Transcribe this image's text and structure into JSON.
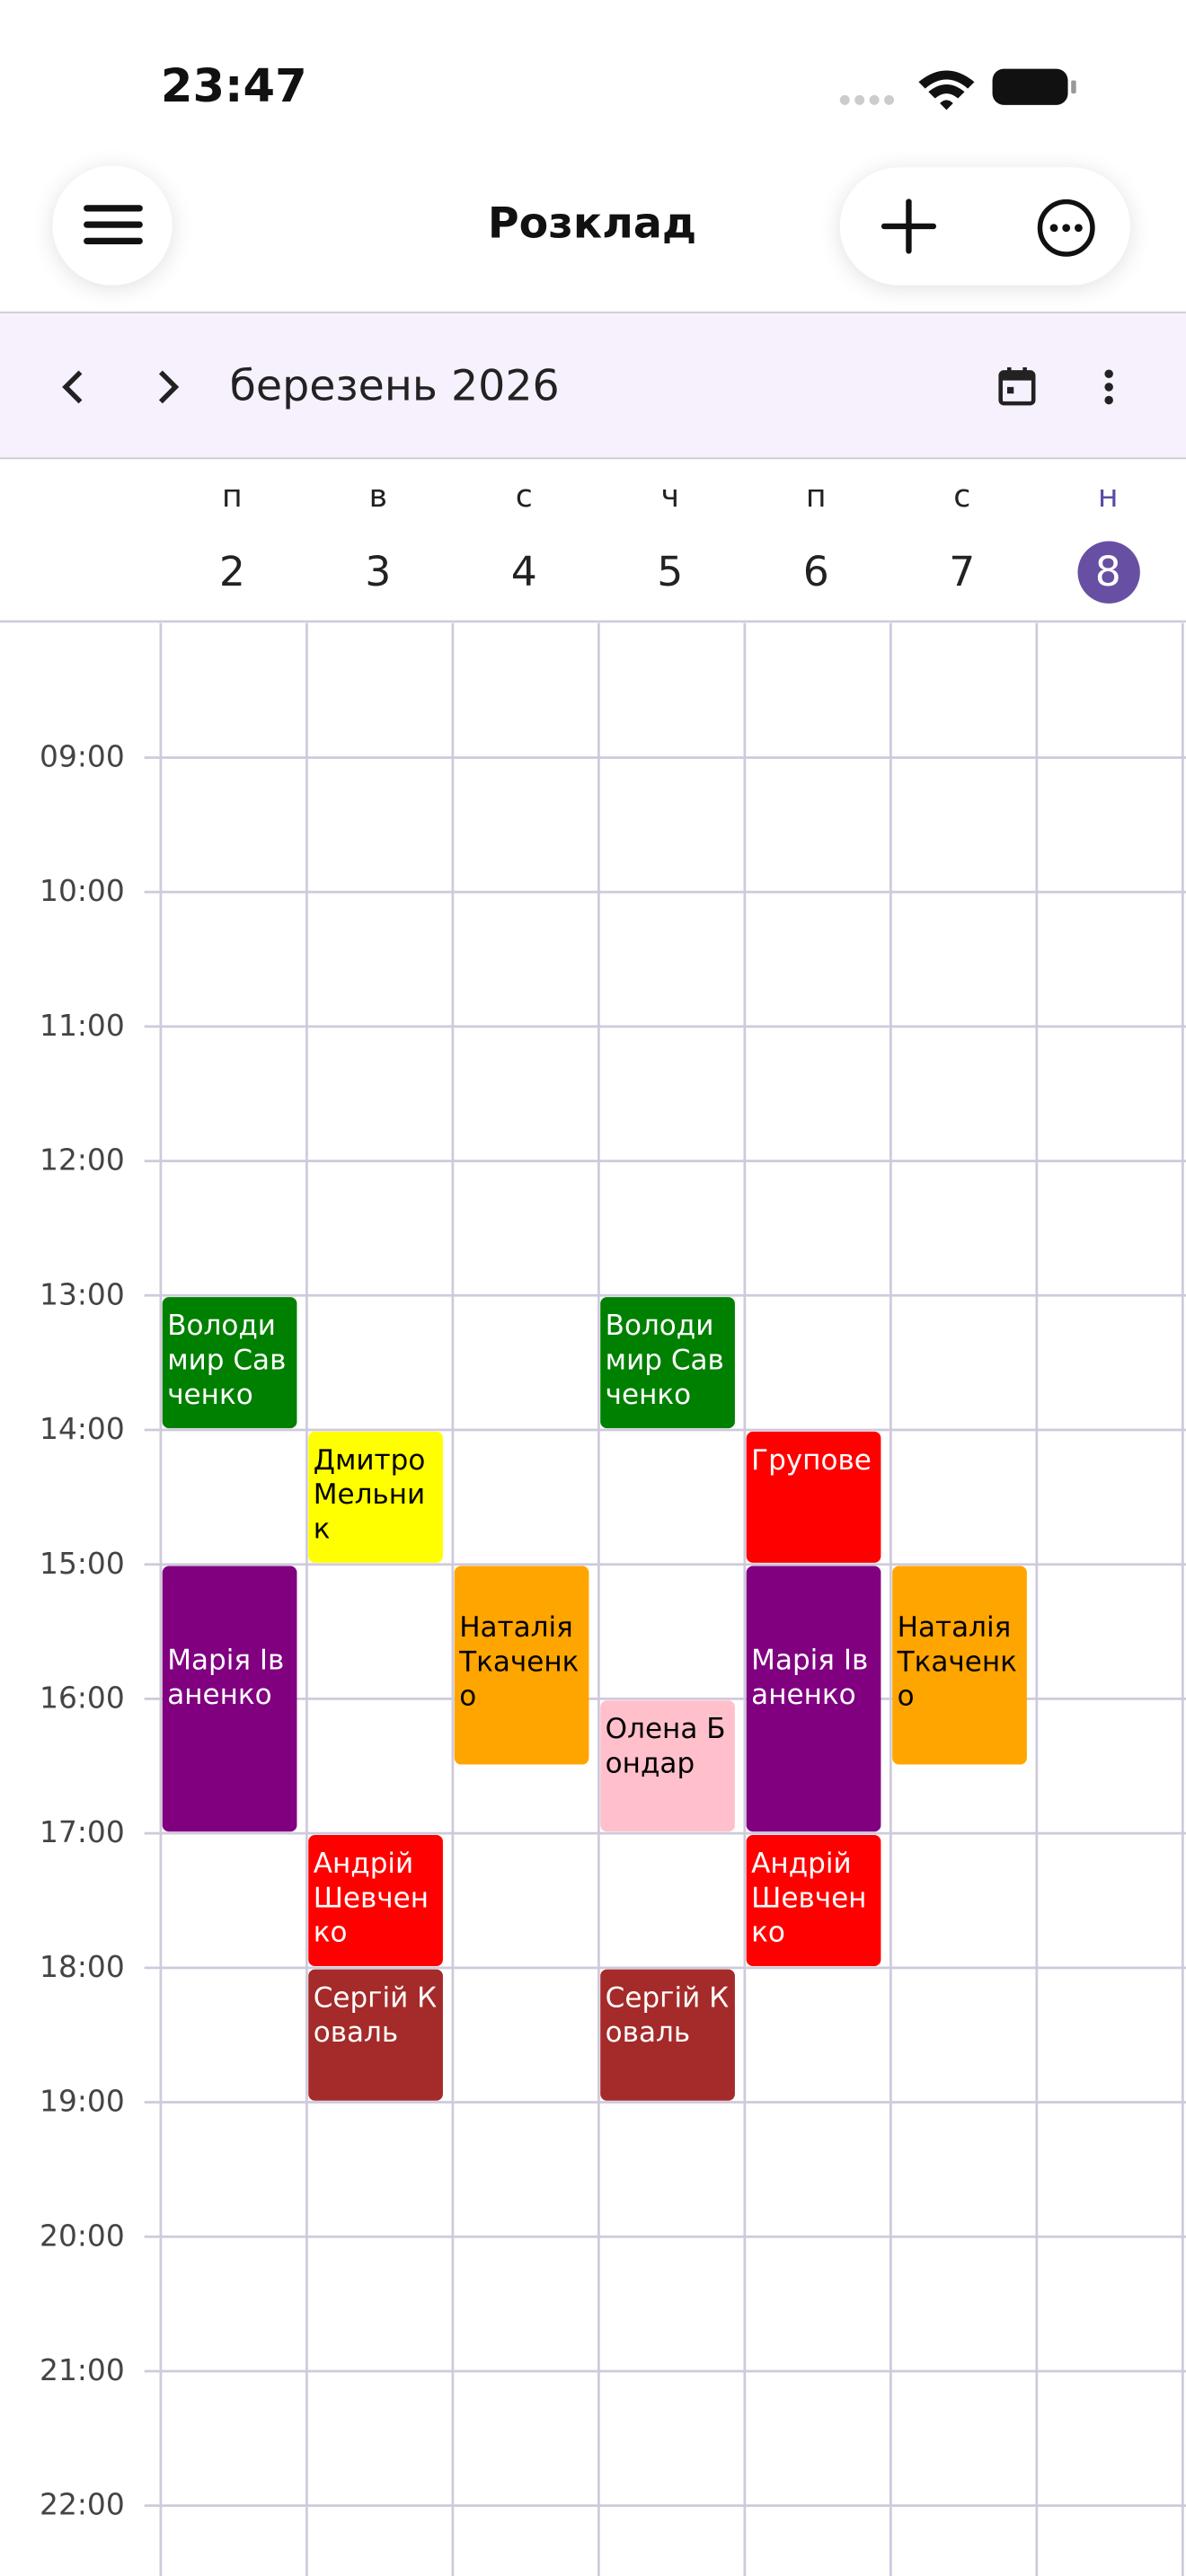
{
  "status_bar": {
    "time": "23:47"
  },
  "header": {
    "title": "Розклад"
  },
  "toolbar": {
    "month": "березень 2026"
  },
  "days": [
    {
      "letter": "п",
      "date": 2
    },
    {
      "letter": "в",
      "date": 3
    },
    {
      "letter": "с",
      "date": 4
    },
    {
      "letter": "ч",
      "date": 5
    },
    {
      "letter": "п",
      "date": 6
    },
    {
      "letter": "с",
      "date": 7
    },
    {
      "letter": "н",
      "date": 8,
      "today": true
    }
  ],
  "hours": [
    "09:00",
    "10:00",
    "11:00",
    "12:00",
    "13:00",
    "14:00",
    "15:00",
    "16:00",
    "17:00",
    "18:00",
    "19:00",
    "20:00",
    "21:00",
    "22:00"
  ],
  "events": [
    {
      "day": 2,
      "start": 13,
      "end": 14,
      "text": "Володимир Савченко",
      "color": "#008000",
      "text_color": "#ffffff"
    },
    {
      "day": 2,
      "start": 15,
      "end": 17,
      "text": "Марія Іваненко",
      "color": "#800080",
      "text_color": "#ffffff"
    },
    {
      "day": 3,
      "start": 14,
      "end": 15,
      "text": "Дмитро Мельник",
      "color": "#ffff00",
      "text_color": "#000000"
    },
    {
      "day": 3,
      "start": 17,
      "end": 18,
      "text": "Андрій Шевченко",
      "color": "#ff0000",
      "text_color": "#ffffff"
    },
    {
      "day": 3,
      "start": 18,
      "end": 19,
      "text": "Сергій Коваль",
      "color": "#a52a2a",
      "text_color": "#ffffff"
    },
    {
      "day": 4,
      "start": 15,
      "end": 16.5,
      "text": "Наталія Ткаченко",
      "color": "#ffa500",
      "text_color": "#000000"
    },
    {
      "day": 5,
      "start": 13,
      "end": 14,
      "text": "Володимир Савченко",
      "color": "#008000",
      "text_color": "#ffffff"
    },
    {
      "day": 5,
      "start": 16,
      "end": 17,
      "text": "Олена Бондар",
      "color": "#ffc0cb",
      "text_color": "#000000"
    },
    {
      "day": 5,
      "start": 18,
      "end": 19,
      "text": "Сергій Коваль",
      "color": "#a52a2a",
      "text_color": "#ffffff"
    },
    {
      "day": 6,
      "start": 14,
      "end": 15,
      "text": "Групове",
      "color": "#ff0000",
      "text_color": "#ffffff"
    },
    {
      "day": 6,
      "start": 15,
      "end": 17,
      "text": "Марія Іваненко",
      "color": "#800080",
      "text_color": "#ffffff"
    },
    {
      "day": 6,
      "start": 17,
      "end": 18,
      "text": "Андрій Шевченко",
      "color": "#ff0000",
      "text_color": "#ffffff"
    },
    {
      "day": 7,
      "start": 15,
      "end": 16.5,
      "text": "Наталія Ткаченко",
      "color": "#ffa500",
      "text_color": "#000000"
    }
  ]
}
